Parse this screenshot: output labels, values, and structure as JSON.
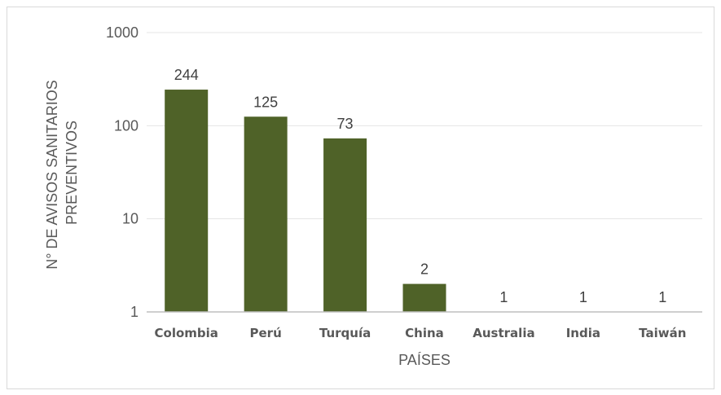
{
  "chart_data": {
    "type": "bar",
    "categories": [
      "Colombia",
      "Perú",
      "Turquía",
      "China",
      "Australia",
      "India",
      "Taiwán"
    ],
    "values": [
      244,
      125,
      73,
      2,
      1,
      1,
      1
    ],
    "data_labels": [
      "244",
      "125",
      "73",
      "2",
      "1",
      "1",
      "1"
    ],
    "xlabel": "PAÍSES",
    "ylabel_lines": [
      "N° DE AVISOS SANITARIOS",
      "PREVENTIVOS"
    ],
    "y_scale": "log",
    "ylim": [
      1,
      1000
    ],
    "yticks": [
      1,
      10,
      100,
      1000
    ],
    "ytick_labels": [
      "1",
      "10",
      "100",
      "1000"
    ],
    "grid": true,
    "legend": "none",
    "bar_color": "#4f6228",
    "grid_color": "#e5e5e5",
    "axis_color": "#bfbfbf"
  }
}
